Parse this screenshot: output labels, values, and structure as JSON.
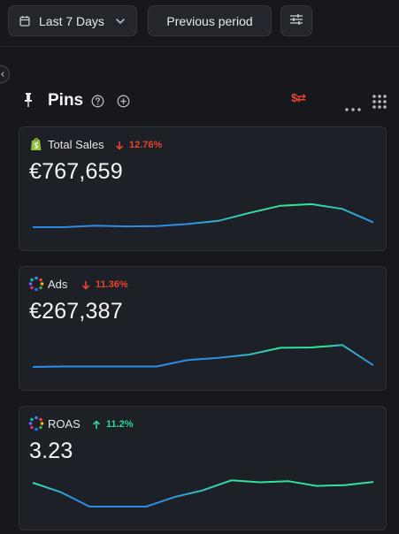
{
  "toolbar": {
    "date_range_label": "Last 7 Days",
    "compare_label": "Previous period",
    "icons": [
      "calendar-icon",
      "chevron-down-icon",
      "sliders-icon"
    ]
  },
  "pins": {
    "title": "Pins",
    "currency_toggle": "$⇄",
    "icons": [
      "pin-icon",
      "help-icon",
      "add-icon",
      "currency-swap-icon",
      "more-icon",
      "grid-icon"
    ]
  },
  "colors": {
    "background": "#16181e",
    "card": "#1d2026",
    "down": "#e5442f",
    "up": "#2fd59a",
    "line_blue": "#2d8de6",
    "line_green": "#34e0a0"
  },
  "cards": [
    {
      "label": "Total Sales",
      "icon": "shopify-icon",
      "change": "12.76%",
      "direction": "down",
      "value": "€767,659",
      "spark": [
        0.0,
        0.0,
        0.04,
        0.02,
        0.03,
        0.08,
        0.16,
        0.36,
        0.54,
        0.58,
        0.46,
        0.12
      ]
    },
    {
      "label": "Ads",
      "icon": "ads-icon",
      "change": "11.36%",
      "direction": "down",
      "value": "€267,387",
      "spark": [
        0.0,
        0.01,
        0.01,
        0.01,
        0.01,
        0.17,
        0.23,
        0.31,
        0.48,
        0.49,
        0.55,
        0.04
      ]
    },
    {
      "label": "ROAS",
      "icon": "roas-icon",
      "change": "11.2%",
      "direction": "up",
      "value": "3.23",
      "spark": [
        0.6,
        0.36,
        0.0,
        0.0,
        0.0,
        0.24,
        0.41,
        0.66,
        0.61,
        0.64,
        0.52,
        0.54,
        0.62
      ]
    }
  ]
}
